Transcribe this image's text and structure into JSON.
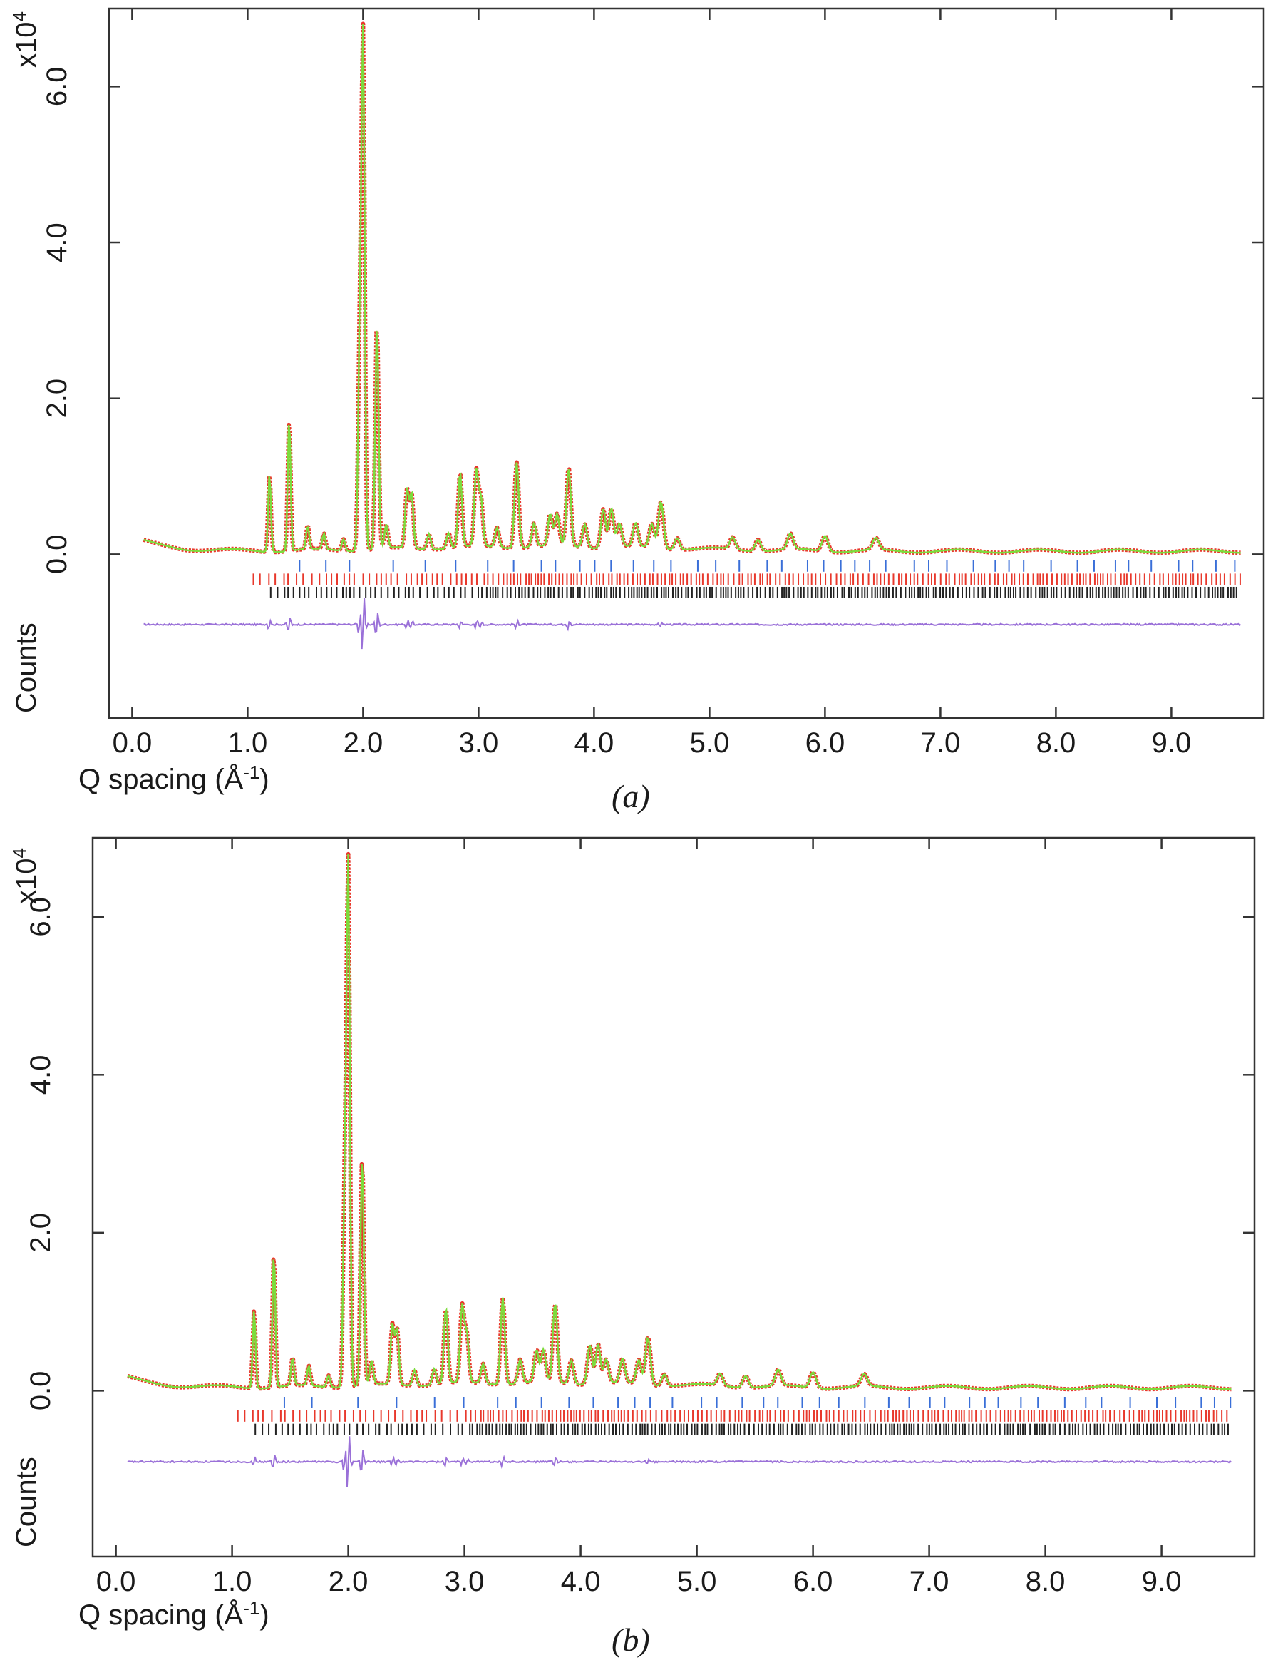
{
  "chart_data": [
    {
      "type": "line",
      "panel_label": "(a)",
      "xlabel": "Q spacing (Å",
      "xlabel_sup": "-1",
      "xlabel_close": ")",
      "ylabel": "Counts",
      "y_multiplier": "x10",
      "y_multiplier_sup": "4",
      "xlim": [
        -0.2,
        9.8
      ],
      "ylim": [
        -2.1,
        7.0
      ],
      "x_ticks": [
        0.0,
        1.0,
        2.0,
        3.0,
        4.0,
        5.0,
        6.0,
        7.0,
        8.0,
        9.0
      ],
      "x_tick_labels": [
        "0.0",
        "1.0",
        "2.0",
        "3.0",
        "4.0",
        "5.0",
        "6.0",
        "7.0",
        "8.0",
        "9.0"
      ],
      "y_ticks": [
        0.0,
        2.0,
        4.0,
        6.0
      ],
      "y_tick_labels": [
        "0.0",
        "2.0",
        "4.0",
        "6.0"
      ],
      "x_range_data": [
        0.1,
        9.6
      ],
      "series": [
        {
          "role": "observed",
          "color": "#e8382c",
          "style": "points"
        },
        {
          "role": "calculated",
          "color": "#7cdc3c",
          "style": "line"
        },
        {
          "role": "difference",
          "color": "#9a70d8",
          "style": "line",
          "offset": -0.9
        }
      ],
      "peaks": [
        {
          "x": 1.19,
          "y": 1.0
        },
        {
          "x": 1.36,
          "y": 1.7
        },
        {
          "x": 1.52,
          "y": 0.3
        },
        {
          "x": 1.66,
          "y": 0.2
        },
        {
          "x": 1.83,
          "y": 0.15
        },
        {
          "x": 1.97,
          "y": 2.5
        },
        {
          "x": 2.0,
          "y": 6.5
        },
        {
          "x": 2.12,
          "y": 2.9
        },
        {
          "x": 2.2,
          "y": 0.3
        },
        {
          "x": 2.38,
          "y": 0.75
        },
        {
          "x": 2.42,
          "y": 0.7
        },
        {
          "x": 2.57,
          "y": 0.2
        },
        {
          "x": 2.74,
          "y": 0.2
        },
        {
          "x": 2.84,
          "y": 0.95
        },
        {
          "x": 2.98,
          "y": 0.95
        },
        {
          "x": 3.02,
          "y": 0.6
        },
        {
          "x": 3.16,
          "y": 0.25
        },
        {
          "x": 3.33,
          "y": 1.1
        },
        {
          "x": 3.48,
          "y": 0.3
        },
        {
          "x": 3.62,
          "y": 0.4
        },
        {
          "x": 3.68,
          "y": 0.4
        },
        {
          "x": 3.78,
          "y": 1.0
        },
        {
          "x": 3.92,
          "y": 0.3
        },
        {
          "x": 4.08,
          "y": 0.5
        },
        {
          "x": 4.15,
          "y": 0.5
        },
        {
          "x": 4.22,
          "y": 0.3
        },
        {
          "x": 4.36,
          "y": 0.3
        },
        {
          "x": 4.5,
          "y": 0.3
        },
        {
          "x": 4.58,
          "y": 0.6
        },
        {
          "x": 4.72,
          "y": 0.15
        },
        {
          "x": 5.2,
          "y": 0.15
        },
        {
          "x": 5.42,
          "y": 0.15
        },
        {
          "x": 5.7,
          "y": 0.2
        },
        {
          "x": 6.0,
          "y": 0.2
        },
        {
          "x": 6.44,
          "y": 0.15
        }
      ],
      "tick_rows": [
        {
          "phase": "phase-1",
          "color": "#3a6fd8",
          "offset": -0.15,
          "step_start": 1.45,
          "step": 0.18
        },
        {
          "phase": "phase-2",
          "color": "#e8382c",
          "offset": -0.32,
          "step_start": 1.05,
          "step": 0.035
        },
        {
          "phase": "phase-3",
          "color": "#222222",
          "offset": -0.49,
          "step_start": 1.2,
          "step": 0.03
        }
      ]
    },
    {
      "type": "line",
      "panel_label": "(b)",
      "xlabel": "Q spacing (Å",
      "xlabel_sup": "-1",
      "xlabel_close": ")",
      "ylabel": "Counts",
      "y_multiplier": "x10",
      "y_multiplier_sup": "4",
      "xlim": [
        -0.2,
        9.8
      ],
      "ylim": [
        -2.1,
        7.0
      ],
      "x_ticks": [
        0.0,
        1.0,
        2.0,
        3.0,
        4.0,
        5.0,
        6.0,
        7.0,
        8.0,
        9.0
      ],
      "x_tick_labels": [
        "0.0",
        "1.0",
        "2.0",
        "3.0",
        "4.0",
        "5.0",
        "6.0",
        "7.0",
        "8.0",
        "9.0"
      ],
      "y_ticks": [
        0.0,
        2.0,
        4.0,
        6.0
      ],
      "y_tick_labels": [
        "0.0",
        "2.0",
        "4.0",
        "6.0"
      ],
      "x_range_data": [
        0.1,
        9.6
      ],
      "series": [
        {
          "role": "observed",
          "color": "#e8382c",
          "style": "points"
        },
        {
          "role": "calculated",
          "color": "#7cdc3c",
          "style": "line"
        },
        {
          "role": "difference",
          "color": "#9a70d8",
          "style": "line",
          "offset": -0.9
        }
      ],
      "peaks": [
        {
          "x": 1.19,
          "y": 1.0
        },
        {
          "x": 1.36,
          "y": 1.7
        },
        {
          "x": 1.52,
          "y": 0.35
        },
        {
          "x": 1.66,
          "y": 0.25
        },
        {
          "x": 1.83,
          "y": 0.15
        },
        {
          "x": 1.97,
          "y": 2.4
        },
        {
          "x": 2.0,
          "y": 6.5
        },
        {
          "x": 2.12,
          "y": 2.9
        },
        {
          "x": 2.2,
          "y": 0.3
        },
        {
          "x": 2.38,
          "y": 0.75
        },
        {
          "x": 2.42,
          "y": 0.7
        },
        {
          "x": 2.57,
          "y": 0.2
        },
        {
          "x": 2.74,
          "y": 0.2
        },
        {
          "x": 2.84,
          "y": 0.95
        },
        {
          "x": 2.98,
          "y": 0.95
        },
        {
          "x": 3.02,
          "y": 0.6
        },
        {
          "x": 3.16,
          "y": 0.25
        },
        {
          "x": 3.33,
          "y": 1.1
        },
        {
          "x": 3.48,
          "y": 0.3
        },
        {
          "x": 3.62,
          "y": 0.4
        },
        {
          "x": 3.68,
          "y": 0.4
        },
        {
          "x": 3.78,
          "y": 1.0
        },
        {
          "x": 3.92,
          "y": 0.3
        },
        {
          "x": 4.08,
          "y": 0.5
        },
        {
          "x": 4.15,
          "y": 0.5
        },
        {
          "x": 4.22,
          "y": 0.3
        },
        {
          "x": 4.36,
          "y": 0.3
        },
        {
          "x": 4.5,
          "y": 0.3
        },
        {
          "x": 4.58,
          "y": 0.6
        },
        {
          "x": 4.72,
          "y": 0.15
        },
        {
          "x": 5.2,
          "y": 0.15
        },
        {
          "x": 5.42,
          "y": 0.15
        },
        {
          "x": 5.7,
          "y": 0.2
        },
        {
          "x": 6.0,
          "y": 0.2
        },
        {
          "x": 6.44,
          "y": 0.15
        }
      ],
      "tick_rows": [
        {
          "phase": "phase-1",
          "color": "#3a6fd8",
          "offset": -0.15,
          "step_start": 1.45,
          "step": 0.18
        },
        {
          "phase": "phase-2",
          "color": "#e8382c",
          "offset": -0.32,
          "step_start": 1.05,
          "step": 0.035
        },
        {
          "phase": "phase-3",
          "color": "#222222",
          "offset": -0.49,
          "step_start": 1.2,
          "step": 0.03
        }
      ]
    }
  ]
}
